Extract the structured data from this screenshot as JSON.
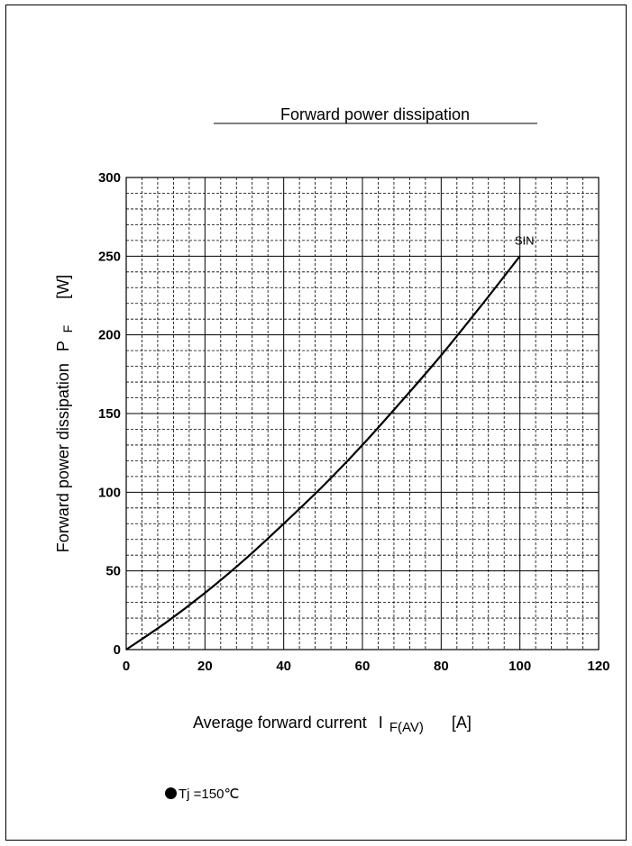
{
  "chart_data": {
    "type": "line",
    "title": "Forward power dissipation",
    "xlabel": {
      "main": "Average forward current",
      "symbol": "I",
      "subscript": "F(AV)",
      "unit": "[A]"
    },
    "ylabel": {
      "main": "Forward power dissipation",
      "symbol": "P",
      "subscript": "F",
      "unit": "[W]"
    },
    "xlim": [
      0,
      120
    ],
    "ylim": [
      0,
      300
    ],
    "xticks": [
      "0",
      "20",
      "40",
      "60",
      "80",
      "100",
      "120"
    ],
    "yticks": [
      "0",
      "50",
      "100",
      "150",
      "200",
      "250",
      "300"
    ],
    "grid": true,
    "series": [
      {
        "name": "SIN",
        "x": [
          0,
          10,
          20,
          30,
          40,
          50,
          60,
          70,
          80,
          90,
          100
        ],
        "y": [
          0,
          17,
          36,
          57,
          80,
          104,
          130,
          158,
          187,
          218,
          250
        ]
      }
    ]
  },
  "note": {
    "marker": "dot-icon",
    "text": "Tj =150℃"
  }
}
